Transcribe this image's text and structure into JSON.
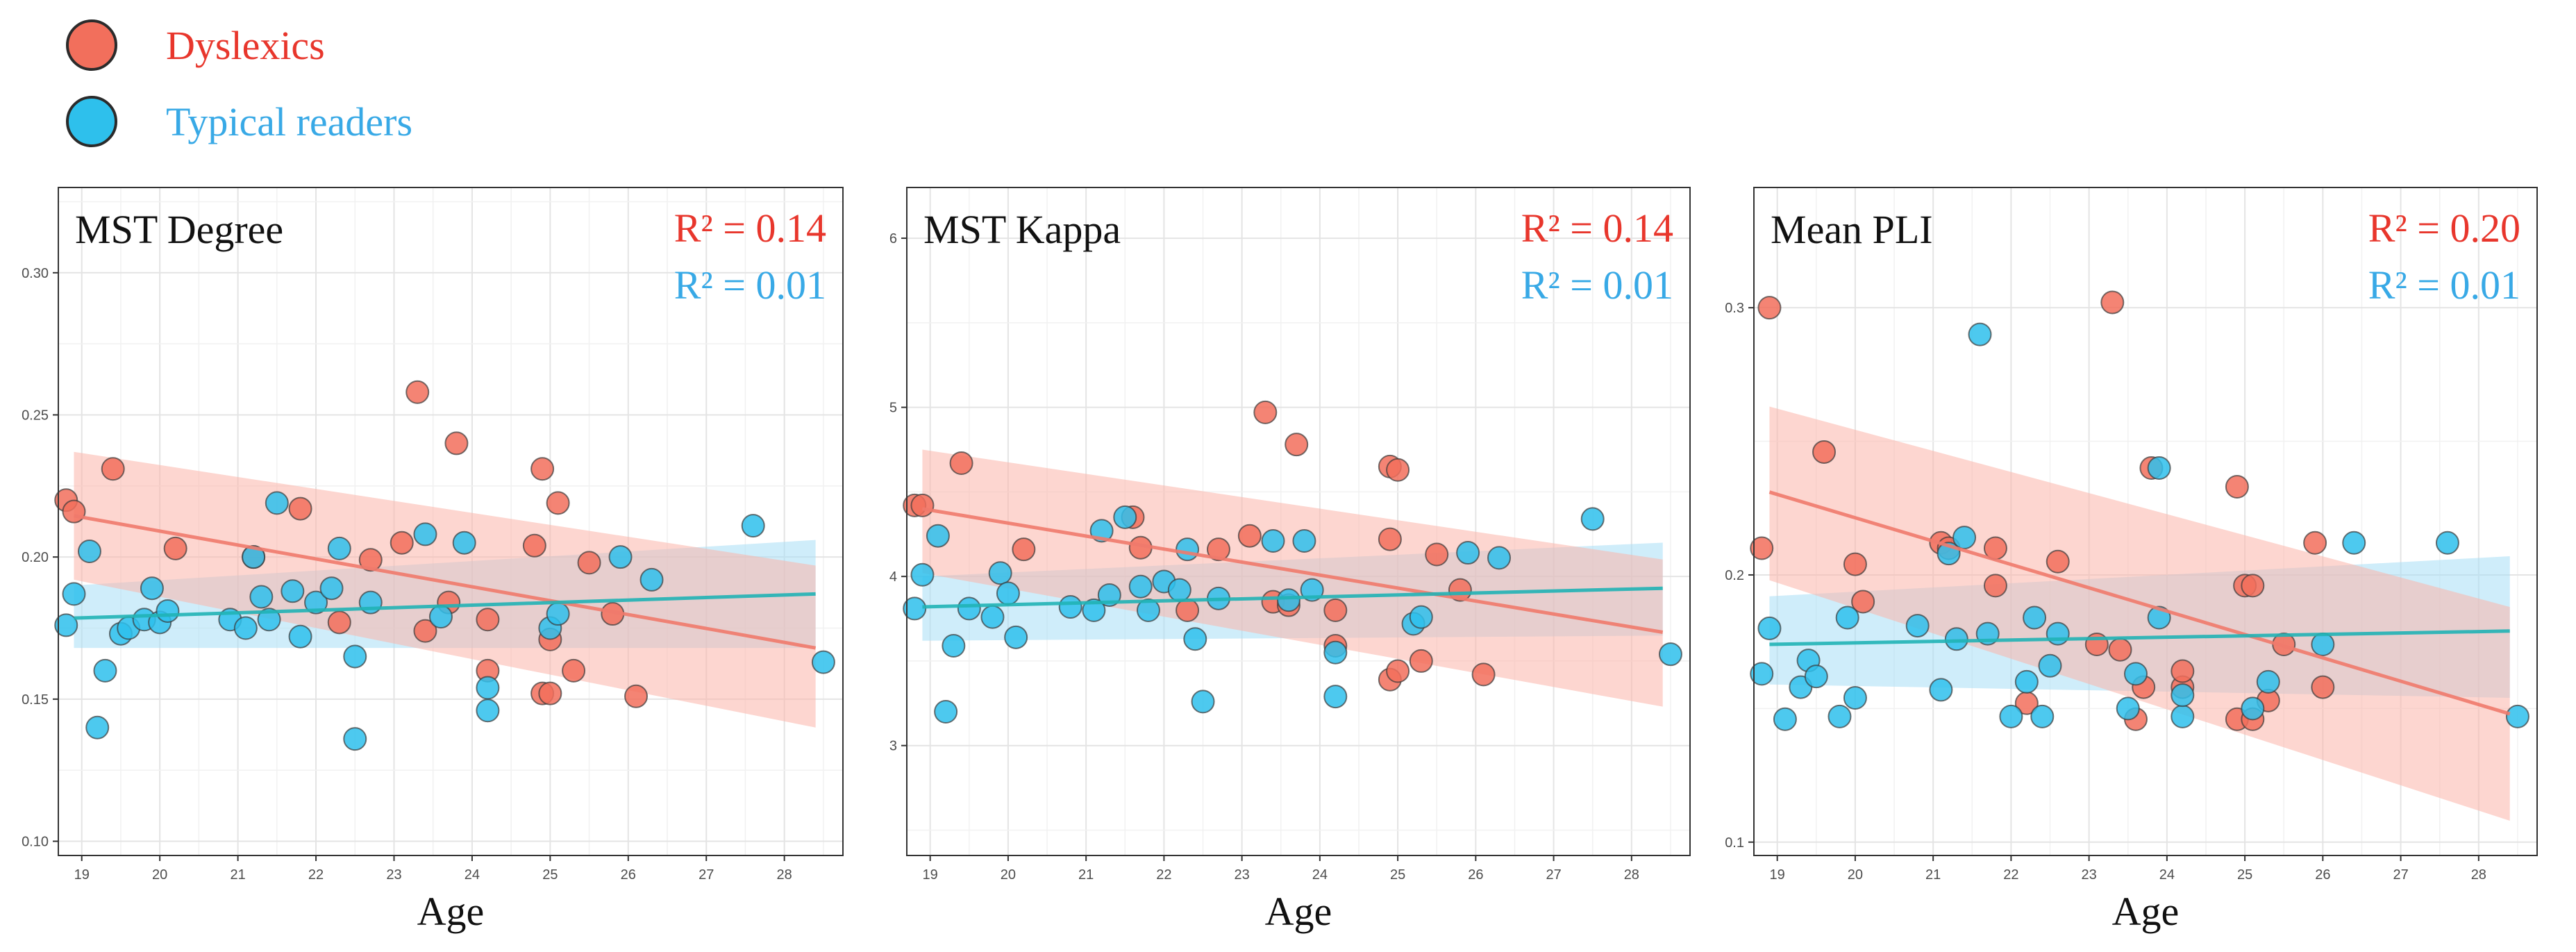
{
  "legend": {
    "items": [
      {
        "label": "Dyslexics",
        "color": "#e8362c",
        "marker": "#f26f5c"
      },
      {
        "label": "Typical readers",
        "color": "#38a9e6",
        "marker": "#2ec0ec"
      }
    ]
  },
  "chart_data": [
    {
      "type": "scatter",
      "title": "MST Degree",
      "xlabel": "Age",
      "ylabel": "",
      "xlim": [
        18.7,
        28.75
      ],
      "ylim": [
        0.095,
        0.33
      ],
      "xticks": [
        19,
        20,
        21,
        22,
        23,
        24,
        25,
        26,
        27,
        28
      ],
      "yticks": [
        0.1,
        0.15,
        0.2,
        0.25,
        0.3
      ],
      "ytick_labels": [
        "0.10",
        "0.15",
        "0.20",
        "0.25",
        "0.30"
      ],
      "r2": [
        {
          "label": "R²",
          "value": "= 0.14",
          "series": "Dyslexics"
        },
        {
          "label": "R²",
          "value": "= 0.01",
          "series": "Typical readers"
        }
      ],
      "series": [
        {
          "name": "Dyslexics",
          "color": "#f26f5c",
          "fit_color": "#f07a6c",
          "band_color": "#fbb5aa",
          "fit": [
            [
              18.9,
              0.2145
            ],
            [
              28.4,
              0.168
            ]
          ],
          "band_lower": [
            0.192,
            0.14
          ],
          "band_upper": [
            0.237,
            0.197
          ],
          "x": [
            18.8,
            18.9,
            19.4,
            20.2,
            21.2,
            21.8,
            22.3,
            22.7,
            23.1,
            23.3,
            23.4,
            23.7,
            23.8,
            24.2,
            24.2,
            24.8,
            24.9,
            24.9,
            25.0,
            25.0,
            25.1,
            25.3,
            25.5,
            25.8,
            26.1
          ],
          "y": [
            0.22,
            0.216,
            0.231,
            0.203,
            0.2,
            0.217,
            0.177,
            0.199,
            0.205,
            0.258,
            0.174,
            0.184,
            0.24,
            0.178,
            0.16,
            0.204,
            0.152,
            0.231,
            0.152,
            0.171,
            0.219,
            0.16,
            0.198,
            0.18,
            0.151
          ]
        },
        {
          "name": "Typical readers",
          "color": "#2ec0ec",
          "fit_color": "#20b2b5",
          "band_color": "#a8def5",
          "fit": [
            [
              18.9,
              0.1785
            ],
            [
              28.4,
              0.187
            ]
          ],
          "band_lower": [
            0.168,
            0.168
          ],
          "band_upper": [
            0.19,
            0.206
          ],
          "x": [
            18.8,
            18.9,
            19.1,
            19.2,
            19.3,
            19.5,
            19.6,
            19.8,
            19.9,
            20.0,
            20.1,
            20.9,
            21.1,
            21.2,
            21.3,
            21.4,
            21.5,
            21.7,
            21.8,
            22.0,
            22.2,
            22.3,
            22.5,
            22.5,
            22.7,
            23.4,
            23.6,
            23.9,
            24.2,
            24.2,
            25.0,
            25.1,
            25.9,
            26.3,
            27.6,
            28.5
          ],
          "y": [
            0.176,
            0.187,
            0.202,
            0.14,
            0.16,
            0.173,
            0.175,
            0.178,
            0.189,
            0.177,
            0.181,
            0.178,
            0.175,
            0.2,
            0.186,
            0.178,
            0.219,
            0.188,
            0.172,
            0.184,
            0.189,
            0.203,
            0.165,
            0.136,
            0.184,
            0.208,
            0.179,
            0.205,
            0.154,
            0.146,
            0.175,
            0.18,
            0.2,
            0.192,
            0.211,
            0.163
          ]
        }
      ]
    },
    {
      "type": "scatter",
      "title": "MST Kappa",
      "xlabel": "Age",
      "ylabel": "",
      "xlim": [
        18.7,
        28.75
      ],
      "ylim": [
        2.35,
        6.3
      ],
      "xticks": [
        19,
        20,
        21,
        22,
        23,
        24,
        25,
        26,
        27,
        28
      ],
      "yticks": [
        3,
        4,
        5,
        6
      ],
      "ytick_labels": [
        "3",
        "4",
        "5",
        "6"
      ],
      "r2": [
        {
          "label": "R²",
          "value": "= 0.14",
          "series": "Dyslexics"
        },
        {
          "label": "R²",
          "value": "= 0.01",
          "series": "Typical readers"
        }
      ],
      "series": [
        {
          "name": "Dyslexics",
          "color": "#f26f5c",
          "fit_color": "#f07a6c",
          "band_color": "#fbb5aa",
          "fit": [
            [
              18.9,
              4.4
            ],
            [
              28.4,
              3.67
            ]
          ],
          "band_lower": [
            4.02,
            3.23
          ],
          "band_upper": [
            4.75,
            4.1
          ],
          "x": [
            18.8,
            18.9,
            19.4,
            20.2,
            21.6,
            21.7,
            22.3,
            22.7,
            23.1,
            23.3,
            23.4,
            23.6,
            23.7,
            24.2,
            24.2,
            24.9,
            24.9,
            24.9,
            25.0,
            25.0,
            25.3,
            25.5,
            25.8,
            26.1
          ],
          "y": [
            4.42,
            4.42,
            4.67,
            4.16,
            4.35,
            4.17,
            3.8,
            4.16,
            4.24,
            4.97,
            3.85,
            3.83,
            4.78,
            3.59,
            3.8,
            4.65,
            3.39,
            4.22,
            3.44,
            4.63,
            3.5,
            4.13,
            3.92,
            3.42
          ]
        },
        {
          "name": "Typical readers",
          "color": "#2ec0ec",
          "fit_color": "#20b2b5",
          "band_color": "#a8def5",
          "fit": [
            [
              18.9,
              3.82
            ],
            [
              28.4,
              3.93
            ]
          ],
          "band_lower": [
            3.62,
            3.65
          ],
          "band_upper": [
            4.0,
            4.2
          ],
          "x": [
            18.8,
            18.9,
            19.1,
            19.2,
            19.3,
            19.5,
            19.8,
            19.9,
            20.0,
            20.1,
            20.8,
            21.1,
            21.2,
            21.3,
            21.5,
            21.7,
            21.8,
            22.0,
            22.2,
            22.3,
            22.4,
            22.5,
            22.7,
            23.4,
            23.6,
            23.8,
            23.9,
            24.2,
            24.2,
            25.2,
            25.3,
            25.9,
            26.3,
            27.5,
            28.5
          ],
          "y": [
            3.81,
            4.01,
            4.24,
            3.2,
            3.59,
            3.81,
            3.76,
            4.02,
            3.9,
            3.64,
            3.82,
            3.8,
            4.27,
            3.89,
            4.35,
            3.94,
            3.8,
            3.97,
            3.92,
            4.16,
            3.63,
            3.26,
            3.87,
            4.21,
            3.86,
            4.21,
            3.92,
            3.55,
            3.29,
            3.72,
            3.76,
            4.14,
            4.11,
            4.34,
            3.54
          ]
        }
      ]
    },
    {
      "type": "scatter",
      "title": "Mean PLI",
      "xlabel": "Age",
      "ylabel": "",
      "xlim": [
        18.7,
        28.75
      ],
      "ylim": [
        0.095,
        0.345
      ],
      "xticks": [
        19,
        20,
        21,
        22,
        23,
        24,
        25,
        26,
        27,
        28
      ],
      "yticks": [
        0.1,
        0.2,
        0.3
      ],
      "ytick_labels": [
        "0.1",
        "0.2",
        "0.3"
      ],
      "r2": [
        {
          "label": "R²",
          "value": "= 0.20",
          "series": "Dyslexics"
        },
        {
          "label": "R²",
          "value": "= 0.01",
          "series": "Typical readers"
        }
      ],
      "series": [
        {
          "name": "Dyslexics",
          "color": "#f26f5c",
          "fit_color": "#f07a6c",
          "band_color": "#fbb5aa",
          "fit": [
            [
              18.9,
              0.231
            ],
            [
              28.4,
              0.148
            ]
          ],
          "band_lower": [
            0.198,
            0.108
          ],
          "band_upper": [
            0.263,
            0.188
          ],
          "x": [
            18.8,
            18.9,
            19.6,
            20.0,
            20.1,
            21.1,
            21.2,
            21.8,
            21.8,
            22.2,
            22.6,
            23.1,
            23.3,
            23.4,
            23.6,
            23.7,
            23.8,
            24.2,
            24.2,
            24.9,
            24.9,
            25.0,
            25.1,
            25.1,
            25.3,
            25.5,
            25.9,
            26.0
          ],
          "y": [
            0.21,
            0.3,
            0.246,
            0.204,
            0.19,
            0.212,
            0.21,
            0.21,
            0.196,
            0.152,
            0.205,
            0.174,
            0.302,
            0.172,
            0.146,
            0.158,
            0.24,
            0.158,
            0.164,
            0.233,
            0.146,
            0.196,
            0.196,
            0.146,
            0.153,
            0.174,
            0.212,
            0.158
          ]
        },
        {
          "name": "Typical readers",
          "color": "#2ec0ec",
          "fit_color": "#20b2b5",
          "band_color": "#a8def5",
          "fit": [
            [
              18.9,
              0.174
            ],
            [
              28.4,
              0.179
            ]
          ],
          "band_lower": [
            0.159,
            0.154
          ],
          "band_upper": [
            0.192,
            0.207
          ],
          "x": [
            18.8,
            18.9,
            19.1,
            19.3,
            19.4,
            19.5,
            19.8,
            19.9,
            20.0,
            20.8,
            21.1,
            21.2,
            21.3,
            21.4,
            21.6,
            21.7,
            22.0,
            22.2,
            22.3,
            22.4,
            22.5,
            22.6,
            23.5,
            23.6,
            23.9,
            23.9,
            24.2,
            24.2,
            25.1,
            25.3,
            26.0,
            26.4,
            27.6,
            28.5
          ],
          "y": [
            0.163,
            0.18,
            0.146,
            0.158,
            0.168,
            0.162,
            0.147,
            0.184,
            0.154,
            0.181,
            0.157,
            0.208,
            0.176,
            0.214,
            0.29,
            0.178,
            0.147,
            0.16,
            0.184,
            0.147,
            0.166,
            0.178,
            0.15,
            0.163,
            0.24,
            0.184,
            0.147,
            0.155,
            0.15,
            0.16,
            0.174,
            0.212,
            0.212,
            0.147
          ]
        }
      ]
    }
  ]
}
